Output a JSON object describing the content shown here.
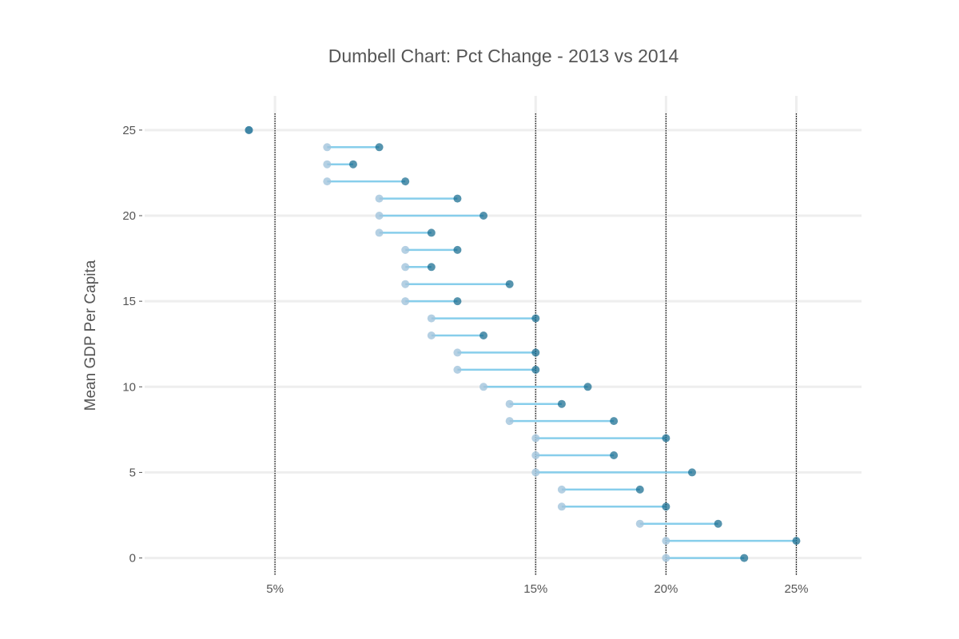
{
  "chart_data": {
    "type": "dumbbell",
    "title": "Dumbell Chart: Pct Change - 2013 vs 2014",
    "xlabel": "",
    "ylabel": "Mean GDP Per Capita",
    "x_ticks": [
      {
        "value": 0.05,
        "label": "5%"
      },
      {
        "value": 0.15,
        "label": "15%"
      },
      {
        "value": 0.2,
        "label": "20%"
      },
      {
        "value": 0.25,
        "label": "25%"
      }
    ],
    "y_ticks": [
      {
        "value": 0,
        "label": "0"
      },
      {
        "value": 5,
        "label": "5"
      },
      {
        "value": 10,
        "label": "10"
      },
      {
        "value": 15,
        "label": "15"
      },
      {
        "value": 20,
        "label": "20"
      },
      {
        "value": 25,
        "label": "25"
      }
    ],
    "xlim": [
      0,
      0.275
    ],
    "ylim": [
      -1,
      27
    ],
    "vlines": [
      0.05,
      0.15,
      0.2,
      0.25
    ],
    "grid": "horizontal",
    "colors": {
      "pct_2013": "#a3c4dc",
      "pct_2014": "#0e668b",
      "line": "skyblue",
      "grid": "#eeeeee",
      "vline": "#000000",
      "text": "#555555"
    },
    "series": [
      {
        "name": "",
        "key": "pct_2013",
        "values": [
          0.04,
          0.07,
          0.07,
          0.07,
          0.09,
          0.09,
          0.09,
          0.1,
          0.1,
          0.1,
          0.1,
          0.11,
          0.11,
          0.12,
          0.12,
          0.13,
          0.14,
          0.14,
          0.15,
          0.15,
          0.15,
          0.16,
          0.16,
          0.19,
          0.2,
          0.2
        ]
      },
      {
        "name": "",
        "key": "pct_2014",
        "values": [
          0.04,
          0.09,
          0.08,
          0.1,
          0.12,
          0.13,
          0.11,
          0.12,
          0.11,
          0.14,
          0.12,
          0.15,
          0.13,
          0.15,
          0.15,
          0.17,
          0.16,
          0.18,
          0.2,
          0.18,
          0.21,
          0.19,
          0.2,
          0.22,
          0.25,
          0.23
        ]
      }
    ],
    "y": [
      25,
      24,
      23,
      22,
      21,
      20,
      19,
      18,
      17,
      16,
      15,
      14,
      13,
      12,
      11,
      10,
      9,
      8,
      7,
      6,
      5,
      4,
      3,
      2,
      1,
      0
    ]
  }
}
